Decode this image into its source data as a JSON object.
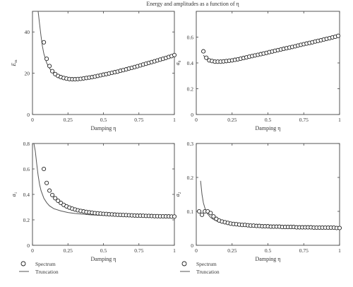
{
  "figure": {
    "title": "Energy and amplitudes as a function of η"
  },
  "chart_data": [
    {
      "type": "scatter",
      "panel": "top-left",
      "xlabel": "Damping η",
      "ylabel": "E_m",
      "xlim": [
        0,
        1
      ],
      "ylim": [
        0,
        50
      ],
      "xticks": [
        0,
        0.25,
        0.5,
        0.75,
        1
      ],
      "xtick_labels": [
        "0",
        "0.25",
        "0.5",
        "0.75",
        "1"
      ],
      "yticks": [
        0,
        20,
        40
      ],
      "ytick_labels": [
        "0",
        "20",
        "40"
      ],
      "series": [
        {
          "name": "Spectrum",
          "kind": "markers",
          "x": [
            0.08,
            0.1,
            0.12,
            0.14,
            0.16,
            0.18,
            0.2,
            0.22,
            0.24,
            0.26,
            0.28,
            0.3,
            0.32,
            0.34,
            0.36,
            0.38,
            0.4,
            0.42,
            0.44,
            0.46,
            0.48,
            0.5,
            0.52,
            0.54,
            0.56,
            0.58,
            0.6,
            0.62,
            0.64,
            0.66,
            0.68,
            0.7,
            0.72,
            0.74,
            0.76,
            0.78,
            0.8,
            0.82,
            0.84,
            0.86,
            0.88,
            0.9,
            0.92,
            0.94,
            0.96,
            0.98,
            1.0
          ],
          "y": [
            35,
            27,
            23.5,
            21,
            19.6,
            18.7,
            18.1,
            17.7,
            17.4,
            17.2,
            17.1,
            17.1,
            17.2,
            17.3,
            17.5,
            17.7,
            17.9,
            18.1,
            18.4,
            18.7,
            19,
            19.3,
            19.6,
            19.9,
            20.2,
            20.5,
            20.8,
            21.2,
            21.5,
            21.9,
            22.3,
            22.6,
            23,
            23.4,
            23.8,
            24.2,
            24.6,
            25,
            25.4,
            25.8,
            26.2,
            26.6,
            27,
            27.4,
            27.9,
            28.3,
            28.8
          ]
        },
        {
          "name": "Truncation",
          "kind": "line",
          "x": [
            0.04,
            0.05,
            0.06,
            0.07,
            0.08,
            0.1,
            0.12,
            0.14,
            0.16,
            0.18,
            0.2,
            0.25,
            0.3,
            0.35,
            0.4,
            0.5,
            0.6,
            0.7,
            0.8,
            0.9,
            1.0
          ],
          "y": [
            50,
            44,
            38,
            33,
            29.5,
            25,
            22.4,
            20.7,
            19.6,
            18.8,
            18.2,
            17.4,
            17.1,
            17.3,
            17.8,
            19.2,
            20.8,
            22.5,
            24.5,
            26.6,
            29.2
          ]
        }
      ]
    },
    {
      "type": "scatter",
      "panel": "top-right",
      "xlabel": "Damping η",
      "ylabel": "a_0",
      "xlim": [
        0,
        1
      ],
      "ylim": [
        0,
        0.8
      ],
      "xticks": [
        0,
        0.25,
        0.5,
        0.75,
        1
      ],
      "xtick_labels": [
        "0",
        "0.25",
        "0.5",
        "0.75",
        "1"
      ],
      "yticks": [
        0,
        0.2,
        0.4,
        0.6
      ],
      "ytick_labels": [
        "0",
        "0.2",
        "0.4",
        "0.6"
      ],
      "series": [
        {
          "name": "Spectrum",
          "kind": "markers",
          "x": [
            0.05,
            0.07,
            0.09,
            0.11,
            0.13,
            0.15,
            0.17,
            0.19,
            0.21,
            0.23,
            0.25,
            0.27,
            0.29,
            0.31,
            0.33,
            0.35,
            0.37,
            0.39,
            0.41,
            0.43,
            0.45,
            0.47,
            0.49,
            0.51,
            0.53,
            0.55,
            0.57,
            0.59,
            0.61,
            0.63,
            0.65,
            0.67,
            0.69,
            0.71,
            0.73,
            0.75,
            0.77,
            0.79,
            0.81,
            0.83,
            0.85,
            0.87,
            0.89,
            0.91,
            0.93,
            0.95,
            0.97,
            0.99
          ],
          "y": [
            0.49,
            0.44,
            0.42,
            0.415,
            0.41,
            0.41,
            0.41,
            0.412,
            0.414,
            0.417,
            0.42,
            0.424,
            0.428,
            0.433,
            0.438,
            0.443,
            0.448,
            0.453,
            0.458,
            0.463,
            0.468,
            0.473,
            0.478,
            0.484,
            0.489,
            0.494,
            0.499,
            0.504,
            0.509,
            0.514,
            0.519,
            0.524,
            0.529,
            0.535,
            0.54,
            0.545,
            0.55,
            0.555,
            0.56,
            0.566,
            0.571,
            0.576,
            0.582,
            0.587,
            0.592,
            0.598,
            0.603,
            0.61
          ]
        },
        {
          "name": "Truncation",
          "kind": "line",
          "x": [
            0.05,
            0.07,
            0.1,
            0.15,
            0.2,
            0.3,
            0.4,
            0.5,
            0.6,
            0.7,
            0.8,
            0.9,
            1.0
          ],
          "y": [
            0.46,
            0.43,
            0.415,
            0.408,
            0.41,
            0.425,
            0.448,
            0.474,
            0.5,
            0.526,
            0.553,
            0.58,
            0.615
          ]
        }
      ]
    },
    {
      "type": "scatter",
      "panel": "bottom-left",
      "xlabel": "Damping η",
      "ylabel": "a_1",
      "xlim": [
        0,
        1
      ],
      "ylim": [
        0,
        0.8
      ],
      "xticks": [
        0,
        0.25,
        0.5,
        0.75,
        1
      ],
      "xtick_labels": [
        "0",
        "0.25",
        "0.5",
        "0.75",
        "1"
      ],
      "yticks": [
        0,
        0.2,
        0.4,
        0.6,
        0.8
      ],
      "ytick_labels": [
        "0",
        "0.2",
        "0.4",
        "0.6",
        "0.8"
      ],
      "series": [
        {
          "name": "Spectrum",
          "kind": "markers",
          "x": [
            0.08,
            0.1,
            0.12,
            0.14,
            0.16,
            0.18,
            0.2,
            0.22,
            0.24,
            0.26,
            0.28,
            0.3,
            0.32,
            0.34,
            0.36,
            0.38,
            0.4,
            0.42,
            0.44,
            0.46,
            0.48,
            0.5,
            0.52,
            0.54,
            0.56,
            0.58,
            0.6,
            0.62,
            0.64,
            0.66,
            0.68,
            0.7,
            0.72,
            0.74,
            0.76,
            0.78,
            0.8,
            0.82,
            0.84,
            0.86,
            0.88,
            0.9,
            0.92,
            0.94,
            0.96,
            0.98,
            1.0
          ],
          "y": [
            0.6,
            0.49,
            0.43,
            0.395,
            0.37,
            0.35,
            0.333,
            0.318,
            0.306,
            0.296,
            0.288,
            0.281,
            0.275,
            0.27,
            0.266,
            0.262,
            0.259,
            0.256,
            0.253,
            0.251,
            0.249,
            0.247,
            0.246,
            0.244,
            0.243,
            0.241,
            0.24,
            0.239,
            0.238,
            0.237,
            0.236,
            0.235,
            0.234,
            0.233,
            0.233,
            0.232,
            0.231,
            0.231,
            0.23,
            0.229,
            0.229,
            0.228,
            0.228,
            0.227,
            0.227,
            0.226,
            0.226
          ]
        },
        {
          "name": "Truncation",
          "kind": "line",
          "x": [
            0.01,
            0.02,
            0.03,
            0.04,
            0.05,
            0.06,
            0.08,
            0.1,
            0.12,
            0.15,
            0.2,
            0.25,
            0.3,
            0.4,
            0.5,
            0.6,
            0.7,
            0.8,
            0.9,
            1.0
          ],
          "y": [
            0.8,
            0.74,
            0.64,
            0.55,
            0.48,
            0.43,
            0.37,
            0.335,
            0.31,
            0.288,
            0.27,
            0.258,
            0.25,
            0.24,
            0.235,
            0.232,
            0.229,
            0.227,
            0.226,
            0.225
          ]
        }
      ]
    },
    {
      "type": "scatter",
      "panel": "bottom-right",
      "xlabel": "Damping η",
      "ylabel": "a_2",
      "xlim": [
        0,
        1
      ],
      "ylim": [
        0,
        0.3
      ],
      "xticks": [
        0,
        0.25,
        0.5,
        0.75,
        1
      ],
      "xtick_labels": [
        "0",
        "0.25",
        "0.5",
        "0.75",
        "1"
      ],
      "yticks": [
        0,
        0.1,
        0.2,
        0.3
      ],
      "ytick_labels": [
        "0",
        "0.1",
        "0.2",
        "0.3"
      ],
      "series": [
        {
          "name": "Spectrum",
          "kind": "markers",
          "x": [
            0.02,
            0.04,
            0.06,
            0.08,
            0.1,
            0.12,
            0.14,
            0.16,
            0.18,
            0.2,
            0.22,
            0.24,
            0.26,
            0.28,
            0.3,
            0.32,
            0.34,
            0.36,
            0.38,
            0.4,
            0.42,
            0.44,
            0.46,
            0.48,
            0.5,
            0.52,
            0.54,
            0.56,
            0.58,
            0.6,
            0.62,
            0.64,
            0.66,
            0.68,
            0.7,
            0.72,
            0.74,
            0.76,
            0.78,
            0.8,
            0.82,
            0.84,
            0.86,
            0.88,
            0.9,
            0.92,
            0.94,
            0.96,
            0.98,
            1.0
          ],
          "y": [
            0.1,
            0.09,
            0.1,
            0.1,
            0.095,
            0.085,
            0.078,
            0.073,
            0.07,
            0.068,
            0.066,
            0.064,
            0.063,
            0.062,
            0.061,
            0.06,
            0.06,
            0.059,
            0.058,
            0.058,
            0.057,
            0.057,
            0.056,
            0.056,
            0.056,
            0.055,
            0.055,
            0.055,
            0.055,
            0.054,
            0.054,
            0.054,
            0.054,
            0.054,
            0.053,
            0.053,
            0.053,
            0.053,
            0.053,
            0.053,
            0.052,
            0.052,
            0.052,
            0.052,
            0.052,
            0.052,
            0.052,
            0.052,
            0.051,
            0.051
          ]
        },
        {
          "name": "Truncation",
          "kind": "line",
          "x": [
            0.03,
            0.04,
            0.05,
            0.06,
            0.07,
            0.08,
            0.1,
            0.12,
            0.15,
            0.2,
            0.25,
            0.3,
            0.4,
            0.5,
            0.6,
            0.7,
            0.8,
            0.9,
            1.0
          ],
          "y": [
            0.19,
            0.15,
            0.125,
            0.11,
            0.1,
            0.092,
            0.082,
            0.076,
            0.07,
            0.065,
            0.062,
            0.06,
            0.057,
            0.056,
            0.055,
            0.054,
            0.053,
            0.052,
            0.052
          ]
        }
      ]
    }
  ],
  "legends": [
    {
      "spectrum_label": "Spectrum",
      "truncation_label": "Truncation"
    },
    {
      "spectrum_label": "Spectrum",
      "truncation_label": "Truncation"
    }
  ]
}
